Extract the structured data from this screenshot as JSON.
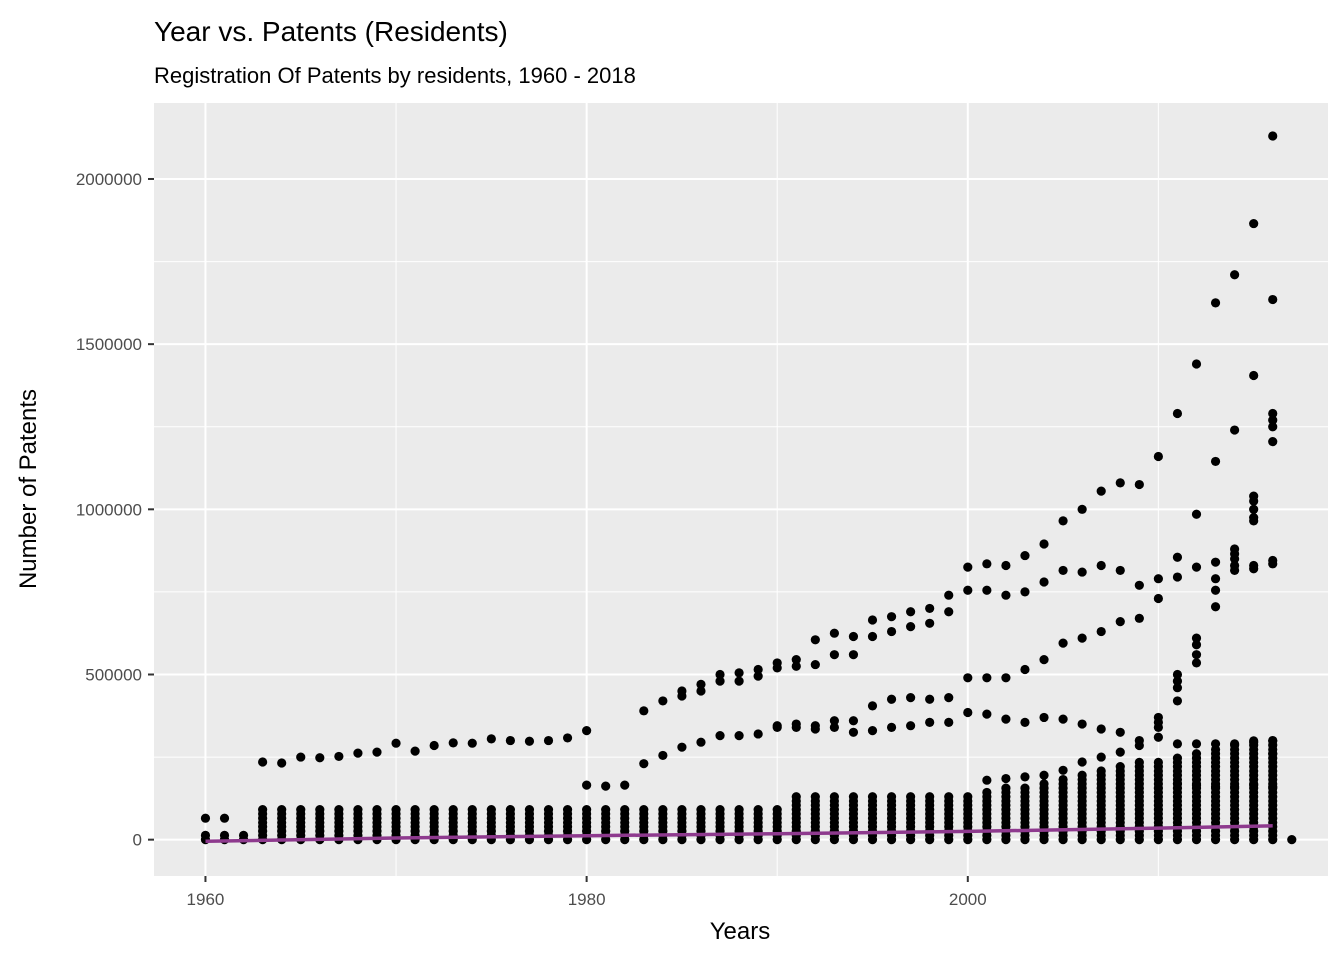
{
  "chart_data": {
    "type": "scatter",
    "title": "Year vs. Patents (Residents)",
    "subtitle": "Registration Of Patents by residents, 1960 - 2018",
    "xlabel": "Years",
    "ylabel": "Number of Patents",
    "xlim": [
      1957.3,
      2018.9
    ],
    "ylim": [
      -110000,
      2230000
    ],
    "x_ticks": [
      1960,
      1980,
      2000
    ],
    "y_ticks": [
      0,
      500000,
      1000000,
      1500000,
      2000000
    ],
    "x_tick_labels": [
      "1960",
      "1980",
      "2000"
    ],
    "y_tick_labels": [
      "0",
      "500000",
      "1000000",
      "1500000",
      "2000000"
    ],
    "grid": true,
    "legend": "none",
    "colors": {
      "panel": "#ebebeb",
      "grid_major": "#ffffff",
      "point": "#000000",
      "trend": "#8e3a8e",
      "tick_text": "#4d4d4d"
    },
    "band_points": [
      {
        "x": 1960,
        "y": 65000
      },
      {
        "x": 1961,
        "y": 65000
      },
      {
        "x": 1963,
        "y": 235000
      },
      {
        "x": 1964,
        "y": 232000
      },
      {
        "x": 1965,
        "y": 250000
      },
      {
        "x": 1966,
        "y": 248000
      },
      {
        "x": 1967,
        "y": 252000
      },
      {
        "x": 1968,
        "y": 262000
      },
      {
        "x": 1969,
        "y": 265000
      },
      {
        "x": 1970,
        "y": 292000
      },
      {
        "x": 1971,
        "y": 268000
      },
      {
        "x": 1972,
        "y": 285000
      },
      {
        "x": 1973,
        "y": 293000
      },
      {
        "x": 1974,
        "y": 292000
      },
      {
        "x": 1975,
        "y": 305000
      },
      {
        "x": 1976,
        "y": 300000
      },
      {
        "x": 1977,
        "y": 298000
      },
      {
        "x": 1978,
        "y": 300000
      },
      {
        "x": 1979,
        "y": 308000
      },
      {
        "x": 1980,
        "y": 330000
      },
      {
        "x": 1980,
        "y": 165000
      },
      {
        "x": 1981,
        "y": 162000
      },
      {
        "x": 1982,
        "y": 165000
      },
      {
        "x": 1983,
        "y": 390000
      },
      {
        "x": 1984,
        "y": 420000
      },
      {
        "x": 1985,
        "y": 450000
      },
      {
        "x": 1986,
        "y": 470000
      },
      {
        "x": 1987,
        "y": 500000
      },
      {
        "x": 1988,
        "y": 505000
      },
      {
        "x": 1989,
        "y": 515000
      },
      {
        "x": 1990,
        "y": 535000
      },
      {
        "x": 1991,
        "y": 545000
      },
      {
        "x": 1992,
        "y": 605000
      },
      {
        "x": 1993,
        "y": 625000
      },
      {
        "x": 1994,
        "y": 615000
      },
      {
        "x": 1995,
        "y": 665000
      },
      {
        "x": 1996,
        "y": 675000
      },
      {
        "x": 1997,
        "y": 690000
      },
      {
        "x": 1998,
        "y": 700000
      },
      {
        "x": 1999,
        "y": 740000
      },
      {
        "x": 2000,
        "y": 825000
      },
      {
        "x": 2001,
        "y": 835000
      },
      {
        "x": 2002,
        "y": 830000
      },
      {
        "x": 2003,
        "y": 860000
      },
      {
        "x": 2004,
        "y": 895000
      },
      {
        "x": 2005,
        "y": 965000
      },
      {
        "x": 2006,
        "y": 1000000
      },
      {
        "x": 2007,
        "y": 1055000
      },
      {
        "x": 2008,
        "y": 1080000
      },
      {
        "x": 2009,
        "y": 1075000
      },
      {
        "x": 2010,
        "y": 1160000
      },
      {
        "x": 2011,
        "y": 1290000
      },
      {
        "x": 2012,
        "y": 1440000
      },
      {
        "x": 2013,
        "y": 1625000
      },
      {
        "x": 2014,
        "y": 1710000
      },
      {
        "x": 2015,
        "y": 1865000
      },
      {
        "x": 2016,
        "y": 2130000
      },
      {
        "x": 1985,
        "y": 435000
      },
      {
        "x": 1986,
        "y": 450000
      },
      {
        "x": 1987,
        "y": 480000
      },
      {
        "x": 1988,
        "y": 480000
      },
      {
        "x": 1989,
        "y": 495000
      },
      {
        "x": 1990,
        "y": 520000
      },
      {
        "x": 1991,
        "y": 525000
      },
      {
        "x": 1992,
        "y": 530000
      },
      {
        "x": 1993,
        "y": 560000
      },
      {
        "x": 1994,
        "y": 560000
      },
      {
        "x": 1995,
        "y": 615000
      },
      {
        "x": 1996,
        "y": 630000
      },
      {
        "x": 1997,
        "y": 645000
      },
      {
        "x": 1998,
        "y": 655000
      },
      {
        "x": 1999,
        "y": 690000
      },
      {
        "x": 2000,
        "y": 755000
      },
      {
        "x": 2001,
        "y": 755000
      },
      {
        "x": 2002,
        "y": 740000
      },
      {
        "x": 2003,
        "y": 750000
      },
      {
        "x": 2004,
        "y": 780000
      },
      {
        "x": 2005,
        "y": 815000
      },
      {
        "x": 2006,
        "y": 810000
      },
      {
        "x": 2007,
        "y": 830000
      },
      {
        "x": 2008,
        "y": 815000
      },
      {
        "x": 2009,
        "y": 770000
      },
      {
        "x": 2010,
        "y": 790000
      },
      {
        "x": 2010,
        "y": 730000
      },
      {
        "x": 2011,
        "y": 855000
      },
      {
        "x": 2011,
        "y": 795000
      },
      {
        "x": 2012,
        "y": 985000
      },
      {
        "x": 2012,
        "y": 825000
      },
      {
        "x": 2013,
        "y": 1145000
      },
      {
        "x": 2013,
        "y": 840000
      },
      {
        "x": 2013,
        "y": 790000
      },
      {
        "x": 2013,
        "y": 755000
      },
      {
        "x": 2013,
        "y": 705000
      },
      {
        "x": 2014,
        "y": 1240000
      },
      {
        "x": 2014,
        "y": 880000
      },
      {
        "x": 2014,
        "y": 865000
      },
      {
        "x": 2014,
        "y": 850000
      },
      {
        "x": 2014,
        "y": 830000
      },
      {
        "x": 2014,
        "y": 815000
      },
      {
        "x": 2015,
        "y": 1405000
      },
      {
        "x": 2015,
        "y": 1040000
      },
      {
        "x": 2015,
        "y": 1025000
      },
      {
        "x": 2015,
        "y": 1000000
      },
      {
        "x": 2015,
        "y": 975000
      },
      {
        "x": 2015,
        "y": 965000
      },
      {
        "x": 2015,
        "y": 830000
      },
      {
        "x": 2015,
        "y": 820000
      },
      {
        "x": 2016,
        "y": 1635000
      },
      {
        "x": 2016,
        "y": 1290000
      },
      {
        "x": 2016,
        "y": 1270000
      },
      {
        "x": 2016,
        "y": 1250000
      },
      {
        "x": 2016,
        "y": 1205000
      },
      {
        "x": 2016,
        "y": 845000
      },
      {
        "x": 2016,
        "y": 835000
      },
      {
        "x": 1983,
        "y": 230000
      },
      {
        "x": 1984,
        "y": 255000
      },
      {
        "x": 1985,
        "y": 280000
      },
      {
        "x": 1986,
        "y": 295000
      },
      {
        "x": 1987,
        "y": 315000
      },
      {
        "x": 1988,
        "y": 315000
      },
      {
        "x": 1989,
        "y": 320000
      },
      {
        "x": 1990,
        "y": 340000
      },
      {
        "x": 1991,
        "y": 350000
      },
      {
        "x": 1992,
        "y": 345000
      },
      {
        "x": 1993,
        "y": 360000
      },
      {
        "x": 1994,
        "y": 360000
      },
      {
        "x": 1995,
        "y": 405000
      },
      {
        "x": 1996,
        "y": 425000
      },
      {
        "x": 1997,
        "y": 430000
      },
      {
        "x": 1998,
        "y": 425000
      },
      {
        "x": 1999,
        "y": 430000
      },
      {
        "x": 2000,
        "y": 490000
      },
      {
        "x": 2001,
        "y": 490000
      },
      {
        "x": 2002,
        "y": 490000
      },
      {
        "x": 2003,
        "y": 515000
      },
      {
        "x": 2004,
        "y": 545000
      },
      {
        "x": 2005,
        "y": 595000
      },
      {
        "x": 2006,
        "y": 610000
      },
      {
        "x": 2007,
        "y": 630000
      },
      {
        "x": 2008,
        "y": 660000
      },
      {
        "x": 2009,
        "y": 670000
      },
      {
        "x": 1990,
        "y": 345000
      },
      {
        "x": 1991,
        "y": 340000
      },
      {
        "x": 1992,
        "y": 335000
      },
      {
        "x": 1993,
        "y": 340000
      },
      {
        "x": 1994,
        "y": 325000
      },
      {
        "x": 1995,
        "y": 330000
      },
      {
        "x": 1996,
        "y": 340000
      },
      {
        "x": 1997,
        "y": 345000
      },
      {
        "x": 1998,
        "y": 355000
      },
      {
        "x": 1999,
        "y": 355000
      },
      {
        "x": 2000,
        "y": 385000
      },
      {
        "x": 2001,
        "y": 380000
      },
      {
        "x": 2002,
        "y": 365000
      },
      {
        "x": 2003,
        "y": 355000
      },
      {
        "x": 2004,
        "y": 370000
      },
      {
        "x": 2005,
        "y": 365000
      },
      {
        "x": 2006,
        "y": 350000
      },
      {
        "x": 2007,
        "y": 335000
      },
      {
        "x": 2008,
        "y": 325000
      },
      {
        "x": 2009,
        "y": 300000
      },
      {
        "x": 2010,
        "y": 370000
      },
      {
        "x": 2010,
        "y": 355000
      },
      {
        "x": 2010,
        "y": 340000
      },
      {
        "x": 2011,
        "y": 500000
      },
      {
        "x": 2011,
        "y": 480000
      },
      {
        "x": 2011,
        "y": 460000
      },
      {
        "x": 2011,
        "y": 420000
      },
      {
        "x": 2012,
        "y": 610000
      },
      {
        "x": 2012,
        "y": 590000
      },
      {
        "x": 2012,
        "y": 560000
      },
      {
        "x": 2012,
        "y": 535000
      },
      {
        "x": 2011,
        "y": 290000
      },
      {
        "x": 2012,
        "y": 290000
      },
      {
        "x": 2013,
        "y": 290000
      },
      {
        "x": 2014,
        "y": 290000
      },
      {
        "x": 2015,
        "y": 295000
      },
      {
        "x": 2016,
        "y": 300000
      },
      {
        "x": 2016,
        "y": 260000
      },
      {
        "x": 2017,
        "y": 0
      }
    ],
    "trend_line": [
      {
        "x": 1960,
        "y": -5000
      },
      {
        "x": 1970,
        "y": 5000
      },
      {
        "x": 1980,
        "y": 12000
      },
      {
        "x": 1990,
        "y": 18000
      },
      {
        "x": 2000,
        "y": 25000
      },
      {
        "x": 2010,
        "y": 35000
      },
      {
        "x": 2016,
        "y": 42000
      }
    ]
  }
}
